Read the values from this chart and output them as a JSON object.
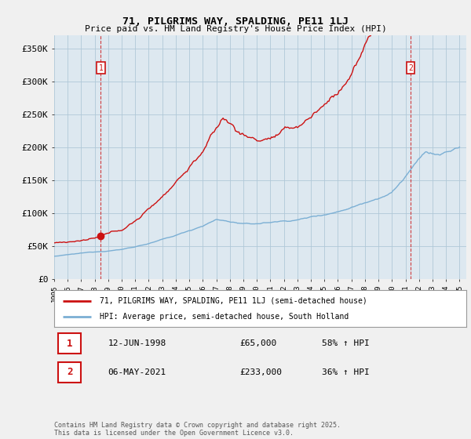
{
  "title": "71, PILGRIMS WAY, SPALDING, PE11 1LJ",
  "subtitle": "Price paid vs. HM Land Registry's House Price Index (HPI)",
  "ylabel_ticks": [
    "£0",
    "£50K",
    "£100K",
    "£150K",
    "£200K",
    "£250K",
    "£300K",
    "£350K"
  ],
  "ytick_values": [
    0,
    50000,
    100000,
    150000,
    200000,
    250000,
    300000,
    350000
  ],
  "ylim": [
    0,
    370000
  ],
  "xlim_start": 1995.0,
  "xlim_end": 2025.5,
  "hpi_color": "#7bafd4",
  "price_color": "#cc1111",
  "bg_color": "#f0f0f0",
  "plot_bg": "#dde8f0",
  "grid_color": "#b0c8d8",
  "marker1_date": 1998.45,
  "marker1_price": 65000,
  "marker2_date": 2021.37,
  "marker2_price": 233000,
  "footnote": "Contains HM Land Registry data © Crown copyright and database right 2025.\nThis data is licensed under the Open Government Licence v3.0.",
  "legend_line1": "71, PILGRIMS WAY, SPALDING, PE11 1LJ (semi-detached house)",
  "legend_line2": "HPI: Average price, semi-detached house, South Holland",
  "table_row1_num": "1",
  "table_row1_date": "12-JUN-1998",
  "table_row1_price": "£65,000",
  "table_row1_info": "58% ↑ HPI",
  "table_row2_num": "2",
  "table_row2_date": "06-MAY-2021",
  "table_row2_price": "£233,000",
  "table_row2_info": "36% ↑ HPI"
}
